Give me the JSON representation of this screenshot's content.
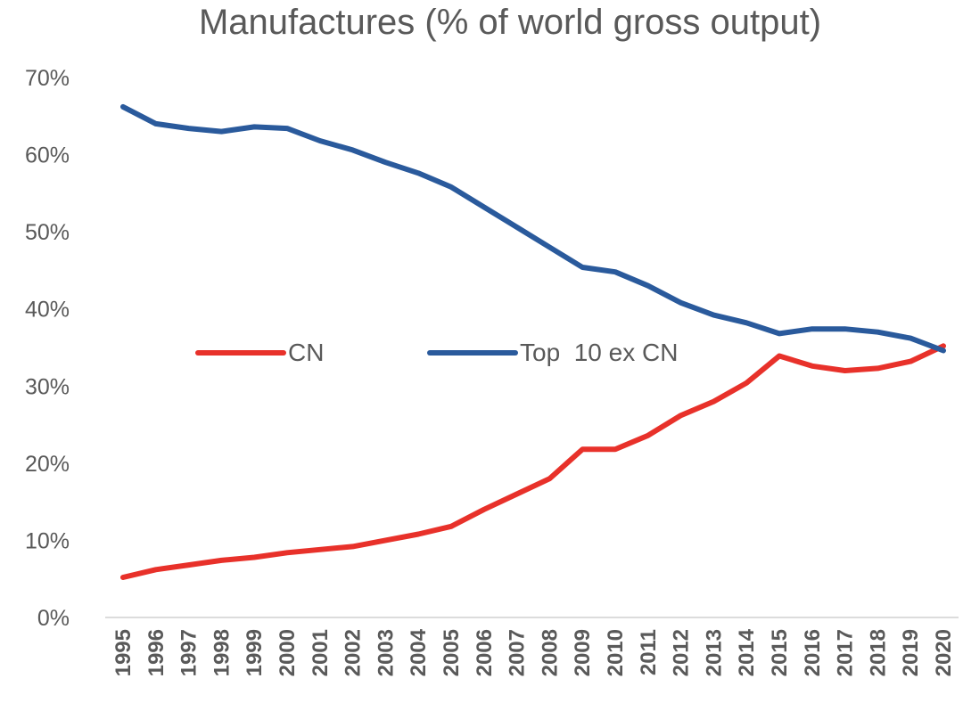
{
  "chart_data": {
    "type": "line",
    "title": "Manufactures (% of world gross output)",
    "xlabel": "",
    "ylabel": "",
    "x": [
      "1995",
      "1996",
      "1997",
      "1998",
      "1999",
      "2000",
      "2001",
      "2002",
      "2003",
      "2004",
      "2005",
      "2006",
      "2007",
      "2008",
      "2009",
      "2010",
      "2011",
      "2012",
      "2013",
      "2014",
      "2015",
      "2016",
      "2017",
      "2018",
      "2019",
      "2020"
    ],
    "ylim": [
      0,
      70
    ],
    "yticks": [
      0,
      10,
      20,
      30,
      40,
      50,
      60,
      70
    ],
    "ytick_labels": [
      "0%",
      "10%",
      "20%",
      "30%",
      "40%",
      "50%",
      "60%",
      "70%"
    ],
    "legend_position": "middle",
    "grid": false,
    "series": [
      {
        "name": "CN",
        "color": "#e8312a",
        "values": [
          5.2,
          6.2,
          6.8,
          7.4,
          7.8,
          8.4,
          8.8,
          9.2,
          10.0,
          10.8,
          11.8,
          14.0,
          16.0,
          18.0,
          21.8,
          21.8,
          23.6,
          26.2,
          28.0,
          30.4,
          33.9,
          32.6,
          32.0,
          32.3,
          33.2,
          35.2
        ]
      },
      {
        "name": "Top  10 ex CN",
        "color": "#2a5a9c",
        "values": [
          66.2,
          64.0,
          63.4,
          63.0,
          63.6,
          63.4,
          61.8,
          60.6,
          59.0,
          57.6,
          55.8,
          53.2,
          50.6,
          48.0,
          45.4,
          44.8,
          43.0,
          40.8,
          39.2,
          38.2,
          36.8,
          37.4,
          37.4,
          37.0,
          36.2,
          34.6
        ]
      }
    ]
  }
}
